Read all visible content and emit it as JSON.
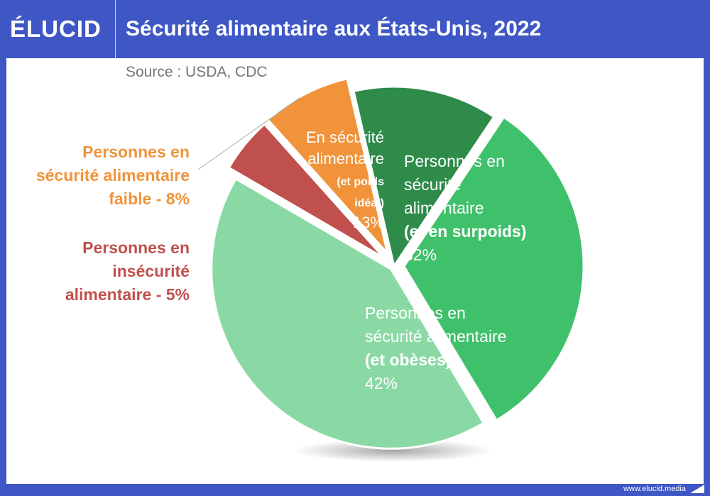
{
  "header": {
    "logo": "ÉLUCID",
    "title": "Sécurité alimentaire aux États-Unis, 2022"
  },
  "source": "Source : USDA, CDC",
  "footer": {
    "url": "www.elucid.media"
  },
  "colors": {
    "brand": "#3e57c4",
    "ideal": "#2e8b4a",
    "overweight": "#3fc06b",
    "obese": "#8ad9a4",
    "insecure": "#c0504d",
    "low_security": "#f0933b"
  },
  "chart_data": {
    "type": "pie",
    "title": "Sécurité alimentaire aux États-Unis, 2022",
    "slices": [
      {
        "id": "ideal",
        "label_lines": [
          "En sécurité",
          "alimentaire",
          "(et poids",
          "idéal)"
        ],
        "value": 13,
        "value_label": "13%",
        "color": "#2e8b4a"
      },
      {
        "id": "overweight",
        "label_lines": [
          "Personnes en",
          "sécurité",
          "alimentaire",
          "(et en surpoids)"
        ],
        "value": 32,
        "value_label": "32%",
        "color": "#3fc06b"
      },
      {
        "id": "obese",
        "label_lines": [
          "Personnes en",
          "sécurité alimentaire",
          "(et obèses)"
        ],
        "value": 42,
        "value_label": "42%",
        "color": "#8ad9a4"
      },
      {
        "id": "insecure",
        "label_lines": [
          "Personnes en",
          "insécurité",
          "alimentaire - 5%"
        ],
        "value": 5,
        "value_label": "",
        "color": "#c0504d"
      },
      {
        "id": "low_security",
        "label_lines": [
          "Personnes en",
          "sécurité alimentaire",
          "faible - 8%"
        ],
        "value": 8,
        "value_label": "",
        "color": "#f0933b"
      }
    ]
  }
}
